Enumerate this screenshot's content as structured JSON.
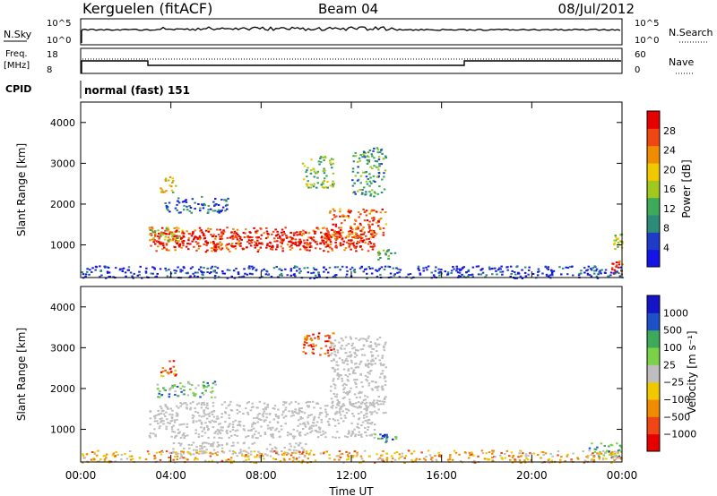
{
  "header": {
    "station": "Kerguelen (fitACF)",
    "beam": "Beam 04",
    "date": "08/Jul/2012"
  },
  "noise_panel": {
    "left_label": "N.Sky",
    "right_label": "N.Search",
    "left_ticks": [
      "10^5",
      "10^0"
    ],
    "right_ticks": [
      "10^5",
      "10^0"
    ]
  },
  "freq_panel": {
    "left_label_1": "Freq.",
    "left_label_2": "[MHz]",
    "right_label": "Nave",
    "left_ticks": [
      "18",
      "8"
    ],
    "right_ticks": [
      "60",
      "0"
    ]
  },
  "cpid": {
    "label": "CPID",
    "value": "normal (fast) 151"
  },
  "colors": {
    "power": [
      "#1414e6",
      "#1e3cc8",
      "#2d8c78",
      "#3caa5a",
      "#a0c81e",
      "#f0c800",
      "#f08c00",
      "#f04614",
      "#e60000"
    ],
    "velocity": [
      "#e60000",
      "#f04614",
      "#f08c00",
      "#f0c800",
      "#bebebe",
      "#7ad24a",
      "#3caa5a",
      "#1e50c8",
      "#1414c8"
    ],
    "ground_scatter": "#bebebe"
  },
  "chart_data": [
    {
      "type": "heatmap",
      "panel": "power",
      "xlabel": "",
      "ylabel": "Slant Range [km]",
      "ylim": [
        200,
        4500
      ],
      "y_ticks": [
        1000,
        2000,
        3000,
        4000
      ],
      "xlim": [
        0,
        24
      ],
      "colorbar_label": "Power [dB]",
      "colorbar_ticks": [
        "28",
        "24",
        "20",
        "16",
        "12",
        "8",
        "4"
      ],
      "blobs": [
        {
          "x": [
            3.0,
            13.0
          ],
          "y": [
            850,
            1450
          ],
          "level": 0.85
        },
        {
          "x": [
            3.2,
            12.5
          ],
          "y": [
            950,
            1350
          ],
          "level": 0.97
        },
        {
          "x": [
            3.0,
            4.5
          ],
          "y": [
            1100,
            1450
          ],
          "level": 0.55
        },
        {
          "x": [
            11.0,
            13.5
          ],
          "y": [
            1200,
            1900
          ],
          "level": 0.8
        },
        {
          "x": [
            3.5,
            4.2
          ],
          "y": [
            2300,
            2700
          ],
          "level": 0.6
        },
        {
          "x": [
            3.5,
            6.5
          ],
          "y": [
            1800,
            2200
          ],
          "level": 0.2
        },
        {
          "x": [
            9.8,
            11.2
          ],
          "y": [
            2400,
            3200
          ],
          "level": 0.45
        },
        {
          "x": [
            12.0,
            13.5
          ],
          "y": [
            2200,
            3400
          ],
          "level": 0.35
        },
        {
          "x": [
            13.0,
            14.0
          ],
          "y": [
            650,
            900
          ],
          "level": 0.4
        },
        {
          "x": [
            23.5,
            24.0
          ],
          "y": [
            300,
            700
          ],
          "level": 0.9
        },
        {
          "x": [
            23.6,
            24.0
          ],
          "y": [
            900,
            1300
          ],
          "level": 0.5
        },
        {
          "x": [
            0.0,
            24.0
          ],
          "y": [
            200,
            500
          ],
          "level": 0.12
        }
      ]
    },
    {
      "type": "heatmap",
      "panel": "velocity",
      "xlabel": "Time UT",
      "ylabel": "Slant Range [km]",
      "ylim": [
        200,
        4500
      ],
      "y_ticks": [
        1000,
        2000,
        3000,
        4000
      ],
      "xlim": [
        0,
        24
      ],
      "x_ticks": [
        "00:00",
        "04:00",
        "08:00",
        "12:00",
        "16:00",
        "20:00",
        "00:00"
      ],
      "colorbar_label": "Velocity [m s⁻¹]",
      "colorbar_ticks": [
        "1000",
        "500",
        "100",
        "25",
        "−25",
        "−100",
        "−500",
        "−1000"
      ],
      "blobs": [
        {
          "x": [
            3.0,
            13.0
          ],
          "y": [
            800,
            1700
          ],
          "level": 0.5,
          "ground": true
        },
        {
          "x": [
            4.0,
            10.0
          ],
          "y": [
            400,
            700
          ],
          "level": 0.5,
          "ground": true
        },
        {
          "x": [
            11.0,
            13.5
          ],
          "y": [
            1400,
            3300
          ],
          "level": 0.5,
          "ground": true
        },
        {
          "x": [
            3.5,
            4.2
          ],
          "y": [
            2300,
            2700
          ],
          "level": 0.25
        },
        {
          "x": [
            9.8,
            11.2
          ],
          "y": [
            2800,
            3400
          ],
          "level": 0.2
        },
        {
          "x": [
            3.3,
            6.0
          ],
          "y": [
            1800,
            2200
          ],
          "level": 0.65
        },
        {
          "x": [
            13.0,
            14.0
          ],
          "y": [
            700,
            900
          ],
          "level": 0.75
        },
        {
          "x": [
            22.5,
            24.0
          ],
          "y": [
            300,
            700
          ],
          "level": 0.7
        },
        {
          "x": [
            0.0,
            24.0
          ],
          "y": [
            200,
            500
          ],
          "level": 0.35
        }
      ]
    }
  ]
}
